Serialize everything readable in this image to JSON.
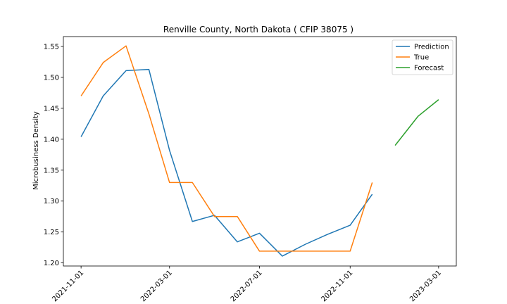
{
  "chart_data": {
    "type": "line",
    "title": "Renville County, North Dakota ( CFIP 38075 )",
    "xlabel": "",
    "ylabel": "Microbusiness Density",
    "ylim": [
      1.195,
      1.566
    ],
    "xlim": [
      "2021-10-08",
      "2023-03-25"
    ],
    "yticks": [
      1.2,
      1.25,
      1.3,
      1.35,
      1.4,
      1.45,
      1.5,
      1.55
    ],
    "ytick_labels": [
      "1.20",
      "1.25",
      "1.30",
      "1.35",
      "1.40",
      "1.45",
      "1.50",
      "1.55"
    ],
    "xticks": [
      "2021-11-01",
      "2022-03-01",
      "2022-07-01",
      "2022-11-01",
      "2023-03-01"
    ],
    "grid": false,
    "legend": "top-right",
    "series": [
      {
        "name": "Prediction",
        "color": "#1f77b4",
        "x": [
          "2021-11-01",
          "2021-12-01",
          "2022-01-01",
          "2022-02-01",
          "2022-03-01",
          "2022-04-01",
          "2022-05-01",
          "2022-06-01",
          "2022-07-01",
          "2022-08-01",
          "2022-09-01",
          "2022-10-01",
          "2022-11-01",
          "2022-12-01"
        ],
        "values": [
          1.404,
          1.47,
          1.511,
          1.513,
          1.382,
          1.267,
          1.277,
          1.234,
          1.248,
          1.211,
          1.23,
          1.246,
          1.261,
          1.311
        ]
      },
      {
        "name": "True",
        "color": "#ff7f0e",
        "x": [
          "2021-11-01",
          "2021-12-01",
          "2022-01-01",
          "2022-02-01",
          "2022-03-01",
          "2022-04-01",
          "2022-05-01",
          "2022-06-01",
          "2022-07-01",
          "2022-08-01",
          "2022-09-01",
          "2022-10-01",
          "2022-11-01",
          "2022-12-01"
        ],
        "values": [
          1.47,
          1.524,
          1.551,
          1.441,
          1.33,
          1.33,
          1.275,
          1.275,
          1.219,
          1.219,
          1.219,
          1.219,
          1.219,
          1.33
        ]
      },
      {
        "name": "Forecast",
        "color": "#2ca02c",
        "x": [
          "2023-01-01",
          "2023-02-01",
          "2023-03-01"
        ],
        "values": [
          1.39,
          1.437,
          1.464
        ]
      }
    ]
  }
}
